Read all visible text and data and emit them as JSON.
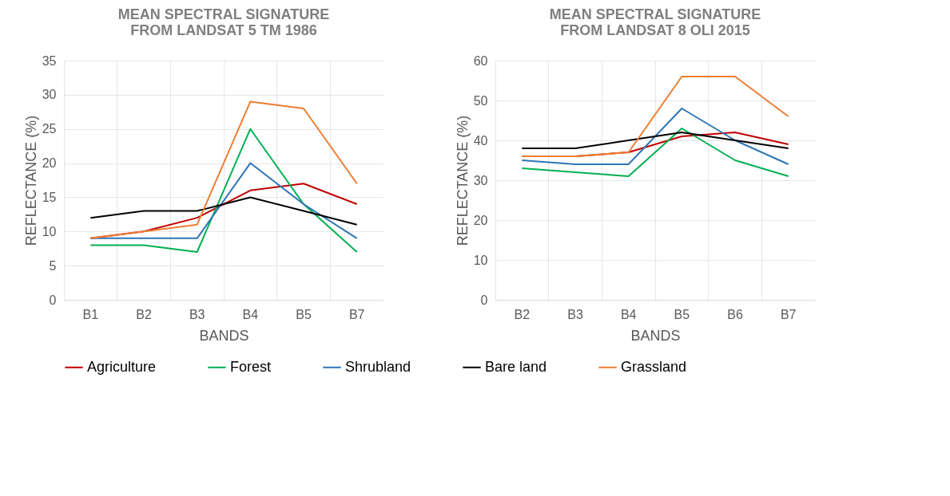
{
  "chart_data": [
    {
      "type": "line",
      "title": "MEAN SPECTRAL SIGNATURE\nFROM LANDSAT 5 TM 1986",
      "xlabel": "BANDS",
      "ylabel": "REFLECTANCE (%)",
      "categories": [
        "B1",
        "B2",
        "B3",
        "B4",
        "B5",
        "B7"
      ],
      "ylim": [
        0,
        35
      ],
      "yticks": [
        0,
        5,
        10,
        15,
        20,
        25,
        30,
        35
      ],
      "grid": true,
      "legend": "bottom",
      "marker": "none",
      "line_style": "solid",
      "series": [
        {
          "name": "Agriculture",
          "color": "#c00000",
          "values": [
            9,
            10,
            12,
            16,
            17,
            14
          ]
        },
        {
          "name": "Forest",
          "color": "#00b050",
          "values": [
            8,
            8,
            7,
            25,
            14,
            7
          ]
        },
        {
          "name": "Shrubland",
          "color": "#2e75b6",
          "values": [
            9,
            9,
            9,
            20,
            14,
            9
          ]
        },
        {
          "name": "Bare land",
          "color": "#000000",
          "values": [
            12,
            13,
            13,
            15,
            13,
            11
          ]
        },
        {
          "name": "Grassland",
          "color": "#ed7d31",
          "values": [
            9,
            10,
            11,
            29,
            28,
            17
          ]
        }
      ]
    },
    {
      "type": "line",
      "title": "MEAN SPECTRAL SIGNATURE\nFROM LANDSAT 8 OLI 2015",
      "xlabel": "BANDS",
      "ylabel": "REFLECTANCE (%)",
      "categories": [
        "B2",
        "B3",
        "B4",
        "B5",
        "B6",
        "B7"
      ],
      "ylim": [
        0,
        60
      ],
      "yticks": [
        0,
        10,
        20,
        30,
        40,
        50,
        60
      ],
      "grid": true,
      "legend": "bottom",
      "marker": "none",
      "line_style": "solid",
      "series": [
        {
          "name": "Agriculture",
          "color": "#c00000",
          "values": [
            36,
            36,
            37,
            41,
            42,
            39
          ]
        },
        {
          "name": "Forest",
          "color": "#00b050",
          "values": [
            33,
            32,
            31,
            43,
            35,
            31
          ]
        },
        {
          "name": "Shrubland",
          "color": "#2e75b6",
          "values": [
            35,
            34,
            34,
            48,
            40,
            34
          ]
        },
        {
          "name": "Bare land",
          "color": "#000000",
          "values": [
            38,
            38,
            40,
            42,
            40,
            38
          ]
        },
        {
          "name": "Grassland",
          "color": "#ed7d31",
          "values": [
            36,
            36,
            37,
            56,
            56,
            46
          ]
        }
      ]
    }
  ]
}
